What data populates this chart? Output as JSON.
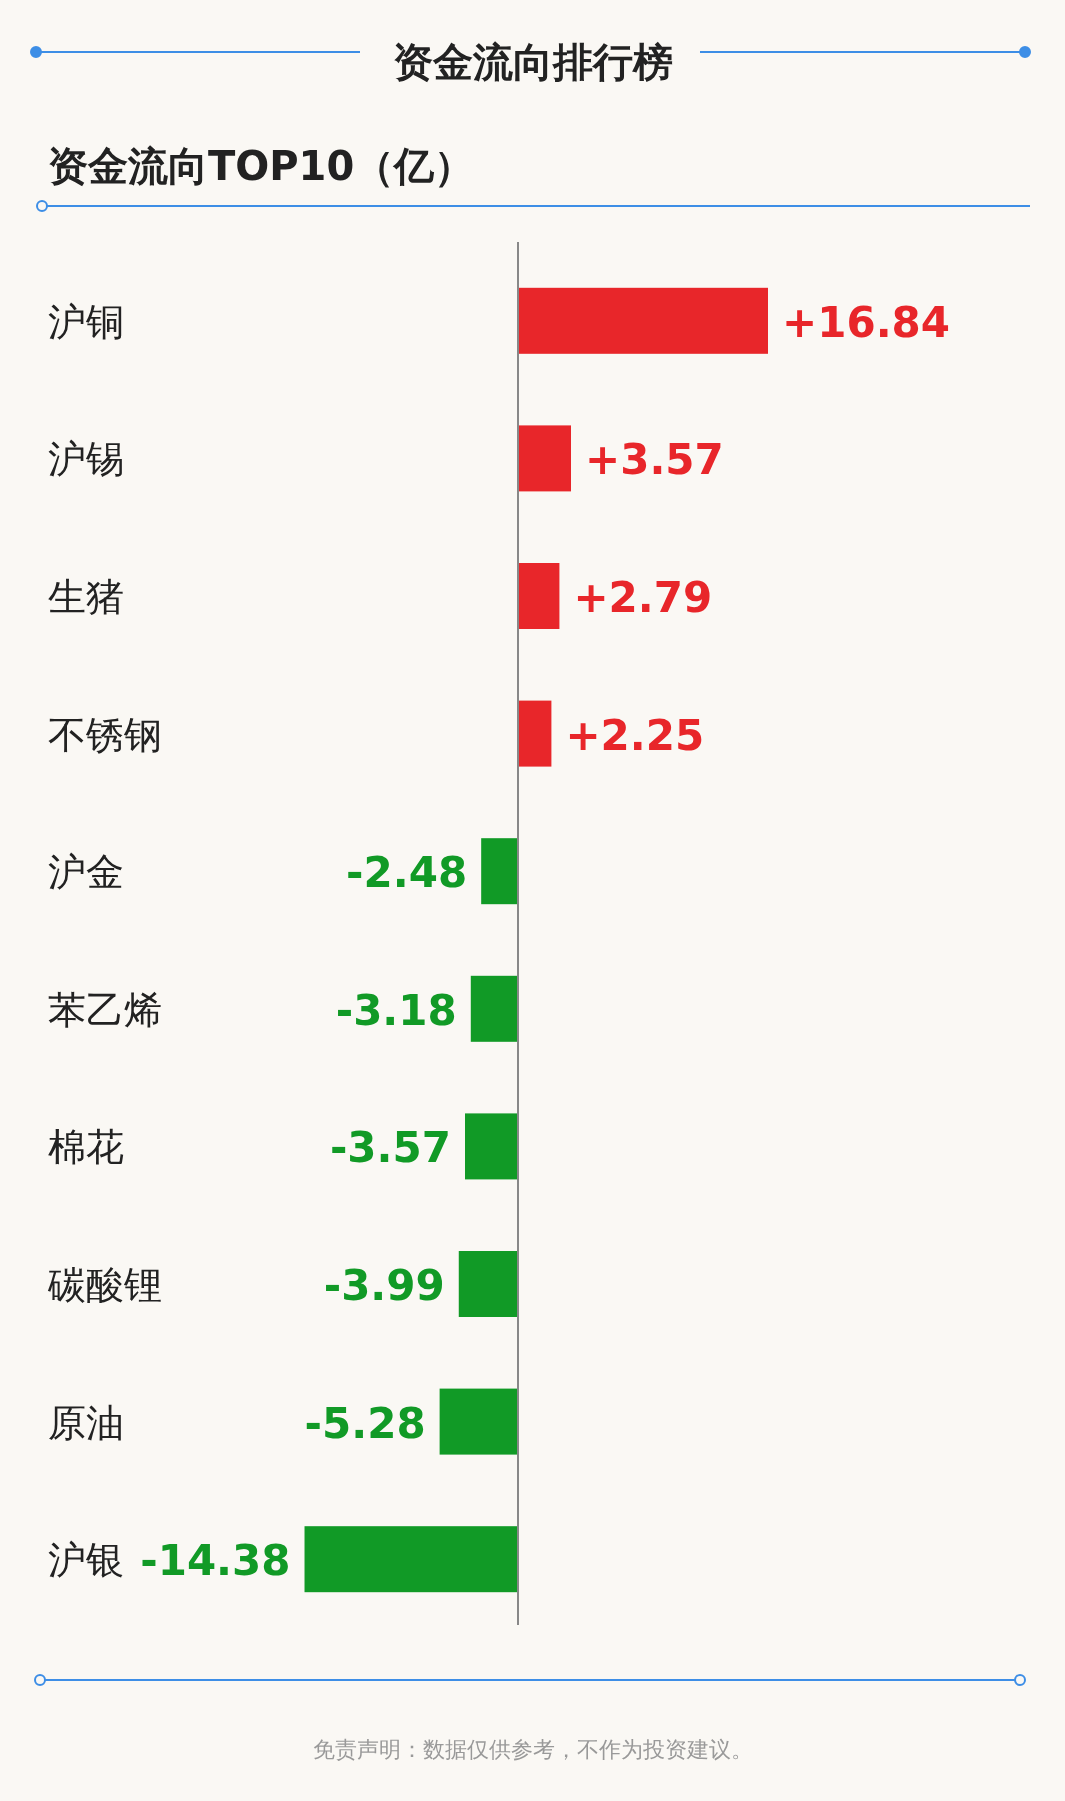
{
  "chart_data": {
    "type": "bar",
    "orientation": "horizontal",
    "title": "资金流向排行榜",
    "subtitle": "资金流向TOP10（亿）",
    "categories": [
      "沪铜",
      "沪锡",
      "生猪",
      "不锈钢",
      "沪金",
      "苯乙烯",
      "棉花",
      "碳酸锂",
      "原油",
      "沪银"
    ],
    "values": [
      16.84,
      3.57,
      2.79,
      2.25,
      -2.48,
      -3.18,
      -3.57,
      -3.99,
      -5.28,
      -14.38
    ],
    "value_labels": [
      "+16.84",
      "+3.57",
      "+2.79",
      "+2.25",
      "-2.48",
      "-3.18",
      "-3.57",
      "-3.99",
      "-5.28",
      "-14.38"
    ],
    "colors": [
      "#e8262a",
      "#e8262a",
      "#e8262a",
      "#e8262a",
      "#119a26",
      "#119a26",
      "#119a26",
      "#119a26",
      "#119a26",
      "#119a26"
    ],
    "annotations": [
      "免责声明：数据仅供参考，不作为投资建议。"
    ]
  }
}
